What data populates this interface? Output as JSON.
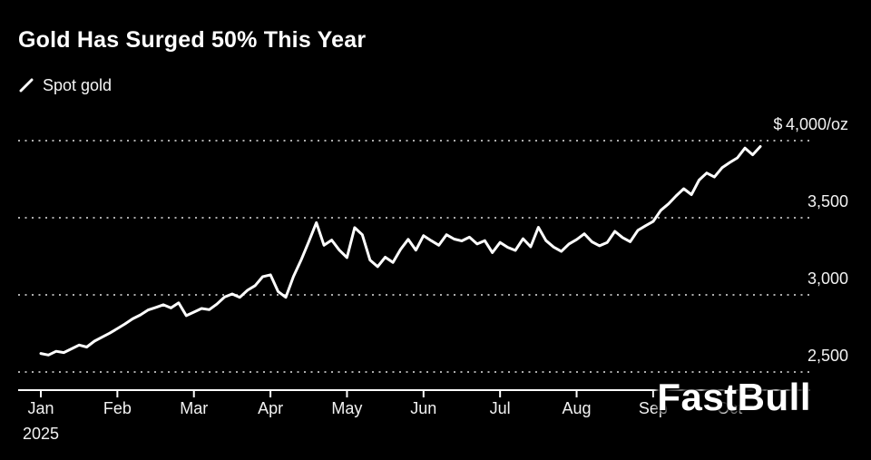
{
  "header": {
    "title": "Gold Has Surged 50% This Year",
    "legend_label": "Spot gold"
  },
  "watermark": "FastBull",
  "chart_data": {
    "type": "line",
    "title": "Gold Has Surged 50% This Year",
    "background": "#000000",
    "line_color": "#ffffff",
    "grid": "dotted-horizontal",
    "legend_position": "top-left",
    "x_ticks": [
      "Jan",
      "Feb",
      "Mar",
      "Apr",
      "May",
      "Jun",
      "Jul",
      "Aug",
      "Sep",
      "Oct"
    ],
    "x_axis_year": "2025",
    "points_per_month": 10,
    "y_ticks": [
      {
        "value": 4000,
        "label": "$ 4,000/oz"
      },
      {
        "value": 3500,
        "label": "3,500"
      },
      {
        "value": 3000,
        "label": "3,000"
      },
      {
        "value": 2500,
        "label": "2,500"
      }
    ],
    "ylim": [
      2450,
      4050
    ],
    "series": [
      {
        "name": "Spot gold",
        "unit": "USD/oz",
        "values": [
          2620,
          2610,
          2634,
          2626,
          2650,
          2675,
          2662,
          2700,
          2726,
          2752,
          2782,
          2812,
          2845,
          2870,
          2902,
          2918,
          2936,
          2915,
          2948,
          2865,
          2888,
          2912,
          2904,
          2940,
          2986,
          3006,
          2984,
          3030,
          3060,
          3118,
          3130,
          3022,
          2984,
          3118,
          3225,
          3345,
          3468,
          3322,
          3355,
          3290,
          3242,
          3436,
          3390,
          3226,
          3183,
          3244,
          3210,
          3295,
          3360,
          3290,
          3384,
          3352,
          3322,
          3390,
          3362,
          3350,
          3374,
          3330,
          3352,
          3274,
          3340,
          3308,
          3288,
          3364,
          3312,
          3438,
          3352,
          3310,
          3282,
          3330,
          3358,
          3396,
          3344,
          3318,
          3340,
          3412,
          3372,
          3345,
          3418,
          3448,
          3476,
          3548,
          3590,
          3642,
          3688,
          3650,
          3744,
          3790,
          3764,
          3824,
          3858,
          3888,
          3952,
          3908,
          3962
        ]
      }
    ]
  }
}
